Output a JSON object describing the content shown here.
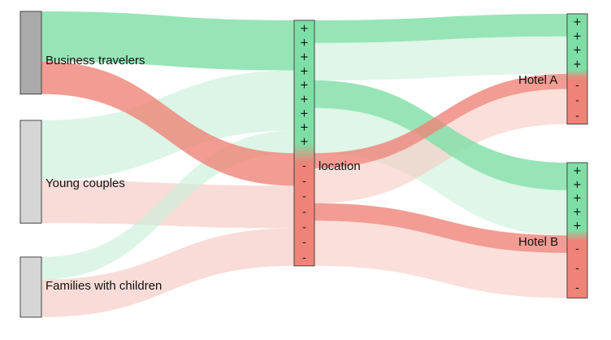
{
  "chart_data": {
    "type": "sankey",
    "title": "",
    "colors": {
      "positive": "#7ddfa5",
      "negative": "#ef8378",
      "segment_active": "#aaaaaa",
      "segment_inactive": "#d6d6d6",
      "positive_fade": "#c9f0d8",
      "negative_fade": "#f6c9c2"
    },
    "segments": [
      {
        "id": "business",
        "label": "Business travelers",
        "active": true
      },
      {
        "id": "couples",
        "label": "Young couples",
        "active": false
      },
      {
        "id": "families",
        "label": "Families with children",
        "active": false
      }
    ],
    "aspect": {
      "id": "location",
      "label": "location",
      "positive": 53,
      "negative": 45
    },
    "hotels": [
      {
        "id": "hotelA",
        "label": "Hotel A",
        "positive": 24,
        "negative": 20
      },
      {
        "id": "hotelB",
        "label": "Hotel B",
        "positive": 29,
        "negative": 25
      }
    ],
    "segment_to_aspect": [
      {
        "segment": "business",
        "sentiment": "positive",
        "value": 20
      },
      {
        "segment": "business",
        "sentiment": "negative",
        "value": 13
      },
      {
        "segment": "couples",
        "sentiment": "positive",
        "value": 24
      },
      {
        "segment": "couples",
        "sentiment": "negative",
        "value": 17
      },
      {
        "segment": "families",
        "sentiment": "positive",
        "value": 9
      },
      {
        "segment": "families",
        "sentiment": "negative",
        "value": 15
      }
    ],
    "aspect_to_hotel": [
      {
        "hotel": "hotelA",
        "sentiment": "positive",
        "value": 24,
        "from_segment": [
          {
            "segment": "business",
            "value": 9
          },
          {
            "segment": "couples",
            "value": 10
          },
          {
            "segment": "families",
            "value": 5
          }
        ]
      },
      {
        "hotel": "hotelB",
        "sentiment": "positive",
        "value": 29,
        "from_segment": [
          {
            "segment": "business",
            "value": 11
          },
          {
            "segment": "couples",
            "value": 14
          },
          {
            "segment": "families",
            "value": 4
          }
        ]
      },
      {
        "hotel": "hotelA",
        "sentiment": "negative",
        "value": 20,
        "from_segment": [
          {
            "segment": "business",
            "value": 6
          },
          {
            "segment": "couples",
            "value": 8
          },
          {
            "segment": "families",
            "value": 6
          }
        ]
      },
      {
        "hotel": "hotelB",
        "sentiment": "negative",
        "value": 25,
        "from_segment": [
          {
            "segment": "business",
            "value": 7
          },
          {
            "segment": "couples",
            "value": 9
          },
          {
            "segment": "families",
            "value": 9
          }
        ]
      }
    ],
    "sign_labels": {
      "positive": "+",
      "negative": "-"
    }
  }
}
